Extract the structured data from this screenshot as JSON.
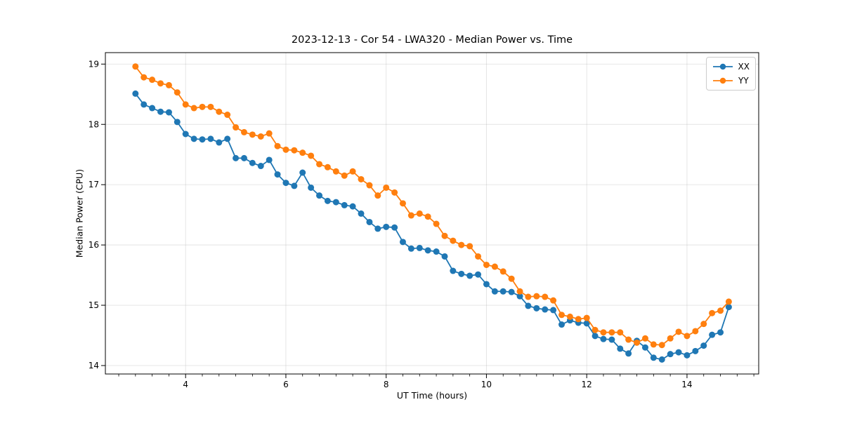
{
  "chart_data": {
    "type": "line",
    "title": "2023-12-13 - Cor 54 - LWA320 - Median Power vs. Time",
    "xlabel": "UT Time (hours)",
    "ylabel": "Median Power (CPU)",
    "xlim": [
      2.4,
      15.43
    ],
    "ylim": [
      13.86,
      19.19
    ],
    "x_ticks": [
      4,
      6,
      8,
      10,
      12,
      14
    ],
    "x_minor_tick_step": 0.3333,
    "y_ticks": [
      14,
      15,
      16,
      17,
      18,
      19
    ],
    "grid": "major",
    "grid_color": "#b0b0b0",
    "legend_position": "upper right",
    "background": "#ffffff",
    "x": [
      3.0,
      3.167,
      3.333,
      3.5,
      3.667,
      3.833,
      4.0,
      4.167,
      4.333,
      4.5,
      4.667,
      4.833,
      5.0,
      5.167,
      5.333,
      5.5,
      5.667,
      5.833,
      6.0,
      6.167,
      6.333,
      6.5,
      6.667,
      6.833,
      7.0,
      7.167,
      7.333,
      7.5,
      7.667,
      7.833,
      8.0,
      8.167,
      8.333,
      8.5,
      8.667,
      8.833,
      9.0,
      9.167,
      9.333,
      9.5,
      9.667,
      9.833,
      10.0,
      10.167,
      10.333,
      10.5,
      10.667,
      10.833,
      11.0,
      11.167,
      11.333,
      11.5,
      11.667,
      11.833,
      12.0,
      12.167,
      12.333,
      12.5,
      12.667,
      12.833,
      13.0,
      13.167,
      13.333,
      13.5,
      13.667,
      13.833,
      14.0,
      14.167,
      14.333,
      14.5,
      14.667,
      14.833
    ],
    "series": [
      {
        "name": "XX",
        "color": "#1f77b4",
        "marker": "circle",
        "values": [
          18.51,
          18.33,
          18.27,
          18.21,
          18.2,
          18.04,
          17.84,
          17.76,
          17.75,
          17.76,
          17.7,
          17.76,
          17.44,
          17.44,
          17.36,
          17.31,
          17.41,
          17.17,
          17.03,
          16.98,
          17.2,
          16.95,
          16.82,
          16.73,
          16.71,
          16.66,
          16.64,
          16.52,
          16.38,
          16.27,
          16.3,
          16.29,
          16.05,
          15.94,
          15.95,
          15.91,
          15.89,
          15.81,
          15.57,
          15.52,
          15.49,
          15.51,
          15.35,
          15.23,
          15.23,
          15.22,
          15.15,
          14.99,
          14.95,
          14.93,
          14.92,
          14.68,
          14.75,
          14.71,
          14.7,
          14.49,
          14.44,
          14.43,
          14.28,
          14.2,
          14.41,
          14.3,
          14.13,
          14.1,
          14.19,
          14.22,
          14.17,
          14.24,
          14.33,
          14.51,
          14.55,
          14.97
        ]
      },
      {
        "name": "YY",
        "color": "#ff7f0e",
        "marker": "circle",
        "values": [
          18.96,
          18.78,
          18.74,
          18.68,
          18.65,
          18.53,
          18.33,
          18.27,
          18.29,
          18.29,
          18.21,
          18.16,
          17.95,
          17.87,
          17.83,
          17.8,
          17.85,
          17.64,
          17.58,
          17.57,
          17.53,
          17.48,
          17.34,
          17.29,
          17.22,
          17.15,
          17.22,
          17.09,
          16.99,
          16.82,
          16.95,
          16.87,
          16.69,
          16.49,
          16.52,
          16.47,
          16.35,
          16.15,
          16.07,
          16.0,
          15.98,
          15.81,
          15.67,
          15.64,
          15.56,
          15.44,
          15.23,
          15.14,
          15.15,
          15.14,
          15.08,
          14.84,
          14.81,
          14.77,
          14.79,
          14.59,
          14.55,
          14.55,
          14.55,
          14.43,
          14.38,
          14.45,
          14.35,
          14.34,
          14.45,
          14.56,
          14.49,
          14.57,
          14.69,
          14.87,
          14.91,
          15.06
        ]
      }
    ]
  }
}
